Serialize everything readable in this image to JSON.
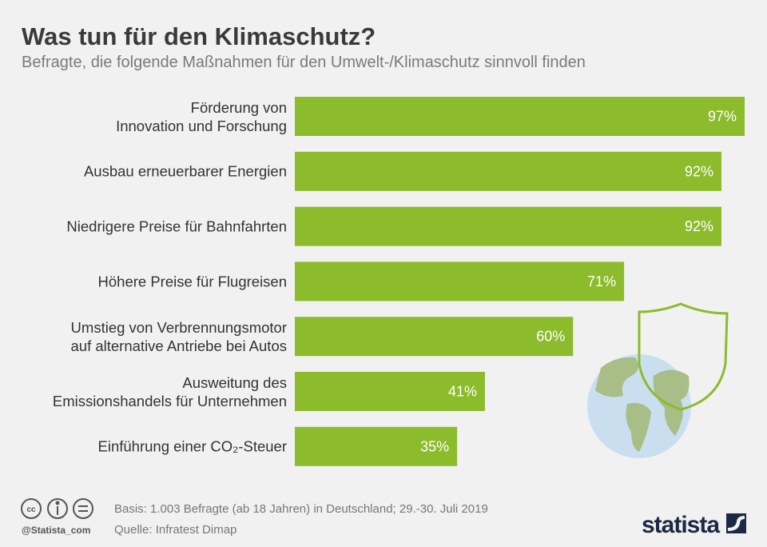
{
  "chart_data": {
    "type": "bar",
    "orientation": "horizontal",
    "title": "Was tun für den Klimaschutz?",
    "subtitle": "Befragte, die folgende Maßnahmen für den Umwelt-/Klimaschutz sinnvoll finden",
    "categories": [
      "Förderung von\nInnovation und Forschung",
      "Ausbau erneuerbarer Energien",
      "Niedrigere Preise für Bahnfahrten",
      "Höhere Preise für Flugreisen",
      "Umstieg von Verbrennungsmotor\nauf alternative Antriebe bei Autos",
      "Ausweitung des\nEmissionshandels für Unternehmen",
      "Einführung einer CO₂-Steuer"
    ],
    "values": [
      97,
      92,
      92,
      71,
      60,
      41,
      35
    ],
    "value_labels": [
      "97%",
      "92%",
      "92%",
      "71%",
      "60%",
      "41%",
      "35%"
    ],
    "color": "#8cbb2c",
    "note": "Basis: 1.003 Befragte (ab 18 Jahren) in Deutschland; 29.-30. Juli 2019",
    "source": "Quelle: Infratest Dimap",
    "credit": "@Statista_com",
    "brand": "statista"
  }
}
